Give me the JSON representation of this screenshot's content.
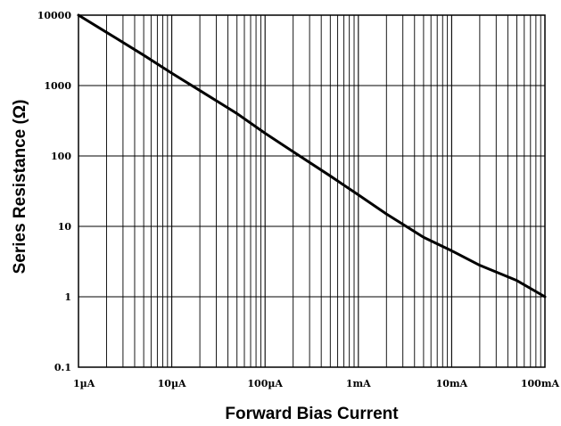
{
  "chart_data": {
    "type": "line",
    "title": "",
    "xlabel": "Forward Bias Current",
    "ylabel": "Series Resistance (Ω)",
    "x_scale": "log",
    "y_scale": "log",
    "x_unit": "A",
    "xlim": [
      1e-06,
      0.1
    ],
    "ylim": [
      0.1,
      10000
    ],
    "grid": true,
    "x_ticks": [
      {
        "value": 1e-06,
        "label": "1µA"
      },
      {
        "value": 1e-05,
        "label": "10µA"
      },
      {
        "value": 0.0001,
        "label": "100µA"
      },
      {
        "value": 0.001,
        "label": "1mA"
      },
      {
        "value": 0.01,
        "label": "10mA"
      },
      {
        "value": 0.1,
        "label": "100mA"
      }
    ],
    "y_ticks": [
      {
        "value": 0.1,
        "label": "0.1"
      },
      {
        "value": 1,
        "label": "1"
      },
      {
        "value": 10,
        "label": "10"
      },
      {
        "value": 100,
        "label": "100"
      },
      {
        "value": 1000,
        "label": "1000"
      },
      {
        "value": 10000,
        "label": "10000"
      }
    ],
    "series": [
      {
        "color": "#000000",
        "x": [
          1e-06,
          2e-06,
          5e-06,
          1e-05,
          2e-05,
          5e-05,
          0.0001,
          0.0002,
          0.0005,
          0.001,
          0.002,
          0.005,
          0.01,
          0.02,
          0.05,
          0.1
        ],
        "y": [
          10000,
          5700,
          2700,
          1500,
          850,
          400,
          210,
          115,
          52,
          28,
          15,
          7,
          4.5,
          2.8,
          1.7,
          1
        ]
      }
    ]
  }
}
